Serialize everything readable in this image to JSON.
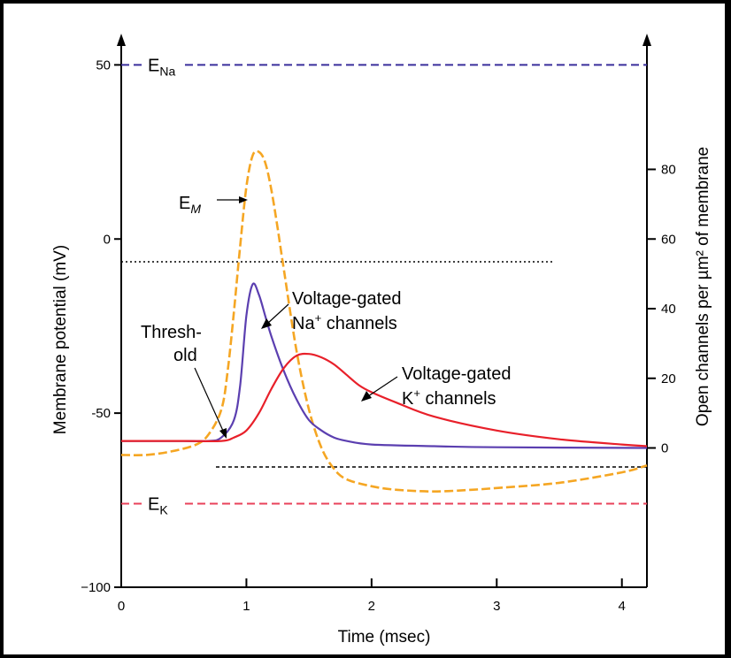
{
  "chart_data": {
    "type": "line",
    "xlabel": "Time (msec)",
    "ylabel_left": "Membrane potential (mV)",
    "ylabel_right": "Open channels per µm² of membrane",
    "x_ticks": [
      0,
      1,
      2,
      3,
      4
    ],
    "x_tick_labels": [
      "0",
      "1",
      "2",
      "3",
      "4"
    ],
    "y_left_ticks": [
      50,
      0,
      -50,
      -100
    ],
    "y_left_tick_labels": [
      "50",
      "0",
      "-50",
      "−100"
    ],
    "y_right_ticks": [
      80,
      60,
      40,
      20,
      0
    ],
    "y_right_tick_labels": [
      "80",
      "60",
      "40",
      "20",
      "0"
    ],
    "xlim": [
      0,
      4.2
    ],
    "ylim_left": [
      -100,
      60
    ],
    "ylim_right": [
      -40,
      120
    ],
    "reference_lines": [
      {
        "name": "E_Na",
        "label_main": "E",
        "label_sub": "Na",
        "value": 50,
        "color": "#3a2f9c"
      },
      {
        "name": "E_K",
        "label_main": "E",
        "label_sub": "K",
        "value": -76,
        "color": "#e8425a"
      }
    ],
    "series": [
      {
        "key": "membrane",
        "color": "#f5a623",
        "axis": "left",
        "x": [
          0,
          0.2,
          0.4,
          0.6,
          0.7,
          0.8,
          0.85,
          0.9,
          0.95,
          1.0,
          1.05,
          1.1,
          1.15,
          1.2,
          1.25,
          1.3,
          1.4,
          1.5,
          1.6,
          1.7,
          1.8,
          2.0,
          2.2,
          2.5,
          2.8,
          3.0,
          3.5,
          4.0,
          4.2
        ],
        "y": [
          -62,
          -62,
          -61,
          -59,
          -56,
          -49,
          -38,
          -21,
          -2,
          15,
          24,
          25,
          22,
          14,
          3,
          -9,
          -32,
          -49,
          -60,
          -66,
          -69,
          -71,
          -72,
          -72.5,
          -72,
          -71.5,
          -70,
          -67,
          -65
        ]
      },
      {
        "key": "na_channels",
        "color": "#5b3fb0",
        "axis": "right",
        "x": [
          0,
          0.5,
          0.7,
          0.8,
          0.9,
          0.95,
          1.0,
          1.05,
          1.1,
          1.15,
          1.2,
          1.3,
          1.4,
          1.5,
          1.6,
          1.7,
          1.8,
          2.0,
          2.5,
          3.0,
          4.2
        ],
        "y": [
          2,
          2,
          2,
          3,
          8,
          18,
          38,
          47,
          44,
          38,
          32,
          22,
          14,
          8,
          5,
          3,
          2,
          1,
          0.5,
          0.2,
          0
        ]
      },
      {
        "key": "k_channels",
        "color": "#e8202a",
        "axis": "right",
        "x": [
          0,
          0.5,
          0.8,
          0.9,
          1.0,
          1.1,
          1.2,
          1.3,
          1.4,
          1.5,
          1.6,
          1.7,
          1.8,
          1.9,
          2.0,
          2.2,
          2.5,
          3.0,
          3.5,
          4.0,
          4.2
        ],
        "y": [
          2,
          2,
          2,
          3,
          5,
          10,
          17,
          23,
          26.5,
          27,
          26,
          24,
          21,
          18,
          16,
          13,
          9,
          5,
          2.5,
          1,
          0.5
        ]
      }
    ],
    "annotations": {
      "em_main": "E",
      "em_sub": "M",
      "threshold_line1": "Thresh-",
      "threshold_line2": "old",
      "na_line1": "Voltage-gated",
      "na_line2_pre": "Na",
      "na_line2_sup": "+",
      "na_line2_post": " channels",
      "k_line1": "Voltage-gated",
      "k_line2_pre": "K",
      "k_line2_sup": "+",
      "k_line2_post": " channels"
    }
  }
}
